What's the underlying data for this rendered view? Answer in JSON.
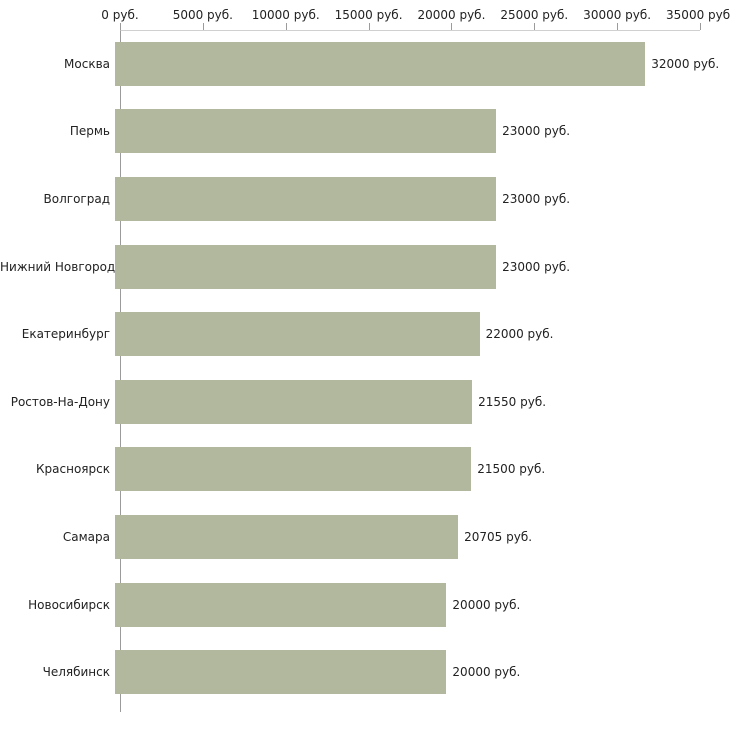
{
  "chart_data": {
    "type": "bar",
    "orientation": "horizontal",
    "title": "",
    "xlabel": "",
    "ylabel": "",
    "legend": false,
    "grid": false,
    "categories": [
      "Москва",
      "Пермь",
      "Волгоград",
      "Нижний Новгород",
      "Екатеринбург",
      "Ростов-На-Дону",
      "Красноярск",
      "Самара",
      "Новосибирск",
      "Челябинск"
    ],
    "values": [
      32000,
      23000,
      23000,
      23000,
      22000,
      21550,
      21500,
      20705,
      20000,
      20000
    ],
    "value_labels": [
      "32000 руб.",
      "23000 руб.",
      "23000 руб.",
      "23000 руб.",
      "22000 руб.",
      "21550 руб.",
      "21500 руб.",
      "20705 руб.",
      "20000 руб.",
      "20000 руб."
    ],
    "x_axis": {
      "max": 35000,
      "xlim": [
        0,
        35000
      ],
      "ticks": [
        0,
        5000,
        10000,
        15000,
        20000,
        25000,
        30000,
        35000
      ],
      "tick_labels": [
        "0 руб.",
        "5000 руб.",
        "10000 руб.",
        "15000 руб.",
        "20000 руб.",
        "25000 руб.",
        "30000 руб.",
        "35000 руб."
      ]
    },
    "colors": {
      "bar": "#b2b89e",
      "axis": "#9b9b9b",
      "grid": "#d0d0d0",
      "text": "#222222",
      "background": "#ffffff"
    }
  }
}
